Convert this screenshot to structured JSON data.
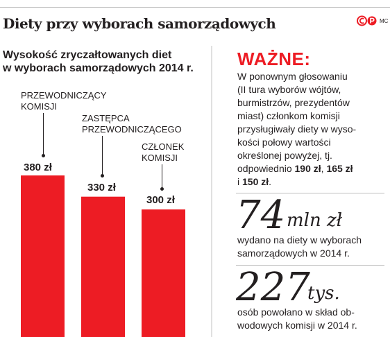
{
  "title": "Diety przy wyborach samorządowych",
  "logo": {
    "text": "MC",
    "colors": {
      "mark": "#ed1c24"
    }
  },
  "chart_data": {
    "type": "bar",
    "title": "Wysokość zryczałtowanych diet w wyborach samorządowych 2014 r.",
    "categories": [
      "PRZEWODNICZĄCY KOMISJI",
      "ZASTĘPCA PRZEWODNICZĄCEGO",
      "CZŁONEK KOMISJI"
    ],
    "category_lines": [
      [
        "PRZEWODNICZĄCY",
        "KOMISJI"
      ],
      [
        "ZASTĘPCA",
        "PRZEWODNICZĄCEGO"
      ],
      [
        "CZŁONEK",
        "KOMISJI"
      ]
    ],
    "values": [
      380,
      330,
      300
    ],
    "value_labels": [
      "380 zł",
      "330 zł",
      "300 zł"
    ],
    "unit": "zł",
    "color": "#ed1c24",
    "grid": false,
    "legend": "none"
  },
  "subtitle_lines": [
    "Wysokość zryczałtowanych diet",
    "w wyborach samorządowych 2014 r."
  ],
  "wazne": {
    "heading": "WAŻNE:",
    "lines": [
      "W ponownym głosowaniu",
      "(II tura wyborów wójtów,",
      "burmistrzów, prezydentów",
      "miast) członkom komisji",
      "przysługiwały diety w wyso-",
      "kości połowy wartości",
      "określonej powyżej, tj."
    ],
    "line8_prefix": "odpowiednio ",
    "amount1": "190 zł",
    "comma": ", ",
    "amount2": "165 zł",
    "line9_prefix": "i ",
    "amount3": "150 zł",
    "line9_suffix": "."
  },
  "fact1": {
    "number": "74",
    "unit": "mln zł",
    "lines": [
      "wydano na diety w wyborach",
      "samorządowych w 2014 r."
    ]
  },
  "fact2": {
    "number": "227",
    "unit": "tys.",
    "lines": [
      "osób powołano w skład ob-",
      "wodowych komisji w 2014 r."
    ]
  },
  "colors": {
    "accent": "#ed1c24",
    "text": "#231f20"
  }
}
